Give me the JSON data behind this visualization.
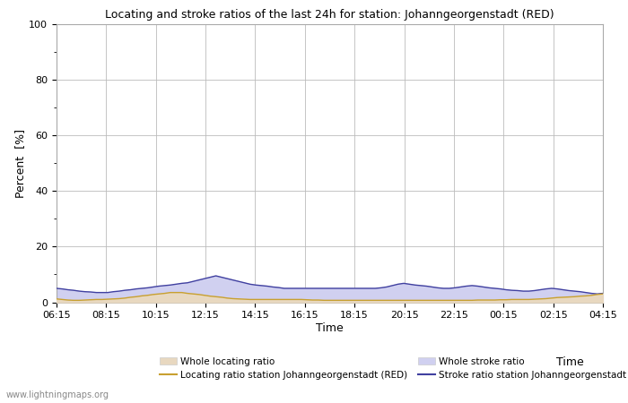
{
  "title": "Locating and stroke ratios of the last 24h for station: Johanngeorgenstadt (RED)",
  "xlabel": "Time",
  "ylabel": "Percent  [%]",
  "watermark": "www.lightningmaps.org",
  "ylim": [
    0,
    100
  ],
  "yticks": [
    0,
    20,
    40,
    60,
    80,
    100
  ],
  "yticks_minor": [
    10,
    30,
    50,
    70,
    90
  ],
  "x_labels": [
    "06:15",
    "08:15",
    "10:15",
    "12:15",
    "14:15",
    "16:15",
    "18:15",
    "20:15",
    "22:15",
    "00:15",
    "02:15",
    "04:15"
  ],
  "background_color": "#ffffff",
  "plot_bg_color": "#ffffff",
  "grid_color": "#bbbbbb",
  "whole_locating_fill_color": "#e8d8c0",
  "whole_stroke_fill_color": "#d0d0f0",
  "locating_station_color": "#c8a030",
  "stroke_station_color": "#4040a0",
  "n_points": 97,
  "whole_locating": [
    1.2,
    1.0,
    0.8,
    0.7,
    0.7,
    0.8,
    0.9,
    1.0,
    1.0,
    1.1,
    1.2,
    1.3,
    1.5,
    1.8,
    2.0,
    2.3,
    2.5,
    2.8,
    3.0,
    3.2,
    3.5,
    3.5,
    3.5,
    3.2,
    3.0,
    2.8,
    2.5,
    2.2,
    2.0,
    1.8,
    1.5,
    1.3,
    1.2,
    1.1,
    1.0,
    1.0,
    1.0,
    1.0,
    1.0,
    1.0,
    1.0,
    1.0,
    1.0,
    1.0,
    0.9,
    0.8,
    0.8,
    0.7,
    0.7,
    0.7,
    0.7,
    0.7,
    0.7,
    0.7,
    0.7,
    0.7,
    0.7,
    0.7,
    0.7,
    0.7,
    0.7,
    0.7,
    0.7,
    0.7,
    0.7,
    0.7,
    0.7,
    0.7,
    0.7,
    0.7,
    0.7,
    0.7,
    0.7,
    0.7,
    0.8,
    0.8,
    0.8,
    0.8,
    0.9,
    0.9,
    1.0,
    1.0,
    1.0,
    1.0,
    1.1,
    1.2,
    1.3,
    1.5,
    1.7,
    1.8,
    1.9,
    2.0,
    2.2,
    2.3,
    2.5,
    2.8,
    3.0
  ],
  "whole_stroke": [
    5.0,
    4.8,
    4.5,
    4.3,
    4.0,
    3.8,
    3.7,
    3.5,
    3.5,
    3.5,
    3.8,
    4.0,
    4.3,
    4.5,
    4.8,
    5.0,
    5.2,
    5.5,
    5.8,
    6.0,
    6.2,
    6.5,
    6.8,
    7.0,
    7.5,
    8.0,
    8.5,
    9.0,
    9.5,
    9.0,
    8.5,
    8.0,
    7.5,
    7.0,
    6.5,
    6.2,
    6.0,
    5.8,
    5.5,
    5.3,
    5.0,
    5.0,
    5.0,
    5.0,
    5.0,
    5.0,
    5.0,
    5.0,
    5.0,
    5.0,
    5.0,
    5.0,
    5.0,
    5.0,
    5.0,
    5.0,
    5.0,
    5.2,
    5.5,
    6.0,
    6.5,
    6.8,
    6.5,
    6.2,
    6.0,
    5.8,
    5.5,
    5.2,
    5.0,
    5.0,
    5.2,
    5.5,
    5.8,
    6.0,
    5.8,
    5.5,
    5.2,
    5.0,
    4.8,
    4.5,
    4.3,
    4.2,
    4.0,
    4.0,
    4.2,
    4.5,
    4.8,
    5.0,
    4.8,
    4.5,
    4.2,
    4.0,
    3.8,
    3.5,
    3.2,
    3.0,
    3.2
  ],
  "locating_station": [
    1.2,
    1.0,
    0.8,
    0.7,
    0.7,
    0.8,
    0.9,
    1.0,
    1.0,
    1.1,
    1.2,
    1.3,
    1.5,
    1.8,
    2.0,
    2.3,
    2.5,
    2.8,
    3.0,
    3.2,
    3.5,
    3.5,
    3.5,
    3.2,
    3.0,
    2.8,
    2.5,
    2.2,
    2.0,
    1.8,
    1.5,
    1.3,
    1.2,
    1.1,
    1.0,
    1.0,
    1.0,
    1.0,
    1.0,
    1.0,
    1.0,
    1.0,
    1.0,
    1.0,
    0.9,
    0.8,
    0.8,
    0.7,
    0.7,
    0.7,
    0.7,
    0.7,
    0.7,
    0.7,
    0.7,
    0.7,
    0.7,
    0.7,
    0.7,
    0.7,
    0.7,
    0.7,
    0.7,
    0.7,
    0.7,
    0.7,
    0.7,
    0.7,
    0.7,
    0.7,
    0.7,
    0.7,
    0.7,
    0.7,
    0.8,
    0.8,
    0.8,
    0.8,
    0.9,
    0.9,
    1.0,
    1.0,
    1.0,
    1.0,
    1.1,
    1.2,
    1.3,
    1.5,
    1.7,
    1.8,
    1.9,
    2.0,
    2.2,
    2.3,
    2.5,
    2.8,
    3.0
  ],
  "stroke_station": [
    5.0,
    4.8,
    4.5,
    4.3,
    4.0,
    3.8,
    3.7,
    3.5,
    3.5,
    3.5,
    3.8,
    4.0,
    4.3,
    4.5,
    4.8,
    5.0,
    5.2,
    5.5,
    5.8,
    6.0,
    6.2,
    6.5,
    6.8,
    7.0,
    7.5,
    8.0,
    8.5,
    9.0,
    9.5,
    9.0,
    8.5,
    8.0,
    7.5,
    7.0,
    6.5,
    6.2,
    6.0,
    5.8,
    5.5,
    5.3,
    5.0,
    5.0,
    5.0,
    5.0,
    5.0,
    5.0,
    5.0,
    5.0,
    5.0,
    5.0,
    5.0,
    5.0,
    5.0,
    5.0,
    5.0,
    5.0,
    5.0,
    5.2,
    5.5,
    6.0,
    6.5,
    6.8,
    6.5,
    6.2,
    6.0,
    5.8,
    5.5,
    5.2,
    5.0,
    5.0,
    5.2,
    5.5,
    5.8,
    6.0,
    5.8,
    5.5,
    5.2,
    5.0,
    4.8,
    4.5,
    4.3,
    4.2,
    4.0,
    4.0,
    4.2,
    4.5,
    4.8,
    5.0,
    4.8,
    4.5,
    4.2,
    4.0,
    3.8,
    3.5,
    3.2,
    3.0,
    3.2
  ],
  "legend_labels": [
    "Whole locating ratio",
    "Locating ratio station Johanngeorgenstadt (RED)",
    "Whole stroke ratio",
    "Stroke ratio station Johanngeorgenstadt (RED)"
  ]
}
